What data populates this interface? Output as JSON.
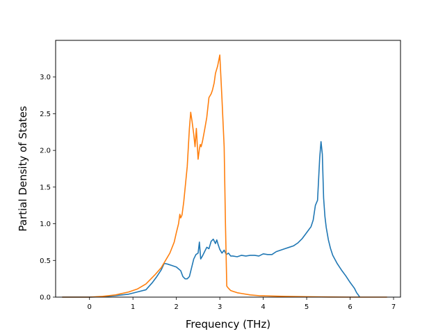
{
  "chart_data": {
    "type": "line",
    "title": "",
    "xlabel": "Frequency (THz)",
    "ylabel": "Partial Density of States",
    "xlim": [
      -0.78,
      7.16
    ],
    "ylim": [
      0.0,
      3.5
    ],
    "xticks": [
      0,
      1,
      2,
      3,
      4,
      5,
      6,
      7
    ],
    "yticks": [
      0.0,
      0.5,
      1.0,
      1.5,
      2.0,
      2.5,
      3.0
    ],
    "xtick_labels": [
      "0",
      "1",
      "2",
      "3",
      "4",
      "5",
      "6",
      "7"
    ],
    "ytick_labels": [
      "0.0",
      "0.5",
      "1.0",
      "1.5",
      "2.0",
      "2.5",
      "3.0"
    ],
    "grid": false,
    "legend": null,
    "series": [
      {
        "color": "#1f77b4",
        "x": [
          -0.63,
          0.0,
          0.3,
          0.6,
          0.9,
          1.1,
          1.3,
          1.45,
          1.55,
          1.65,
          1.72,
          1.8,
          1.9,
          2.0,
          2.1,
          2.15,
          2.2,
          2.25,
          2.3,
          2.35,
          2.4,
          2.45,
          2.5,
          2.53,
          2.56,
          2.6,
          2.65,
          2.7,
          2.75,
          2.8,
          2.85,
          2.9,
          2.93,
          2.96,
          3.0,
          3.05,
          3.1,
          3.15,
          3.2,
          3.25,
          3.3,
          3.4,
          3.5,
          3.6,
          3.7,
          3.8,
          3.9,
          4.0,
          4.1,
          4.2,
          4.3,
          4.4,
          4.5,
          4.6,
          4.7,
          4.8,
          4.9,
          5.0,
          5.05,
          5.1,
          5.15,
          5.2,
          5.25,
          5.3,
          5.33,
          5.36,
          5.39,
          5.42,
          5.45,
          5.5,
          5.55,
          5.6,
          5.7,
          5.8,
          5.9,
          6.0,
          6.1,
          6.15,
          6.2,
          6.22
        ],
        "y": [
          0.0,
          0.0,
          0.005,
          0.02,
          0.04,
          0.07,
          0.1,
          0.2,
          0.28,
          0.37,
          0.46,
          0.45,
          0.43,
          0.41,
          0.36,
          0.28,
          0.25,
          0.25,
          0.28,
          0.4,
          0.52,
          0.58,
          0.6,
          0.75,
          0.52,
          0.56,
          0.62,
          0.68,
          0.66,
          0.76,
          0.79,
          0.73,
          0.78,
          0.72,
          0.65,
          0.6,
          0.64,
          0.58,
          0.6,
          0.56,
          0.56,
          0.55,
          0.57,
          0.56,
          0.57,
          0.57,
          0.56,
          0.59,
          0.58,
          0.58,
          0.62,
          0.64,
          0.66,
          0.68,
          0.7,
          0.74,
          0.8,
          0.88,
          0.92,
          0.96,
          1.05,
          1.25,
          1.32,
          1.9,
          2.12,
          1.95,
          1.35,
          1.1,
          0.95,
          0.78,
          0.66,
          0.57,
          0.46,
          0.37,
          0.29,
          0.2,
          0.12,
          0.06,
          0.02,
          0.0
        ]
      },
      {
        "color": "#ff7f0e",
        "x": [
          -0.63,
          0.0,
          0.3,
          0.6,
          0.9,
          1.1,
          1.3,
          1.5,
          1.65,
          1.75,
          1.85,
          1.95,
          2.0,
          2.05,
          2.08,
          2.1,
          2.13,
          2.17,
          2.2,
          2.25,
          2.3,
          2.33,
          2.36,
          2.4,
          2.43,
          2.46,
          2.5,
          2.53,
          2.55,
          2.57,
          2.6,
          2.65,
          2.7,
          2.75,
          2.8,
          2.83,
          2.87,
          2.9,
          2.95,
          3.0,
          3.05,
          3.1,
          3.13,
          3.16,
          3.2,
          3.25,
          3.3,
          3.4,
          3.5,
          3.7,
          3.9,
          4.2,
          4.5,
          5.0,
          5.5,
          6.0,
          6.5,
          6.85
        ],
        "y": [
          0.0,
          0.0,
          0.01,
          0.03,
          0.07,
          0.11,
          0.18,
          0.3,
          0.4,
          0.5,
          0.6,
          0.75,
          0.88,
          1.0,
          1.13,
          1.08,
          1.12,
          1.3,
          1.48,
          1.78,
          2.3,
          2.52,
          2.4,
          2.22,
          2.05,
          2.3,
          1.88,
          2.02,
          2.08,
          2.05,
          2.12,
          2.28,
          2.45,
          2.72,
          2.77,
          2.82,
          2.92,
          3.05,
          3.15,
          3.3,
          2.7,
          2.05,
          1.0,
          0.15,
          0.12,
          0.09,
          0.08,
          0.06,
          0.05,
          0.03,
          0.02,
          0.015,
          0.01,
          0.005,
          0.002,
          0.0,
          0.0,
          0.0
        ]
      }
    ]
  }
}
